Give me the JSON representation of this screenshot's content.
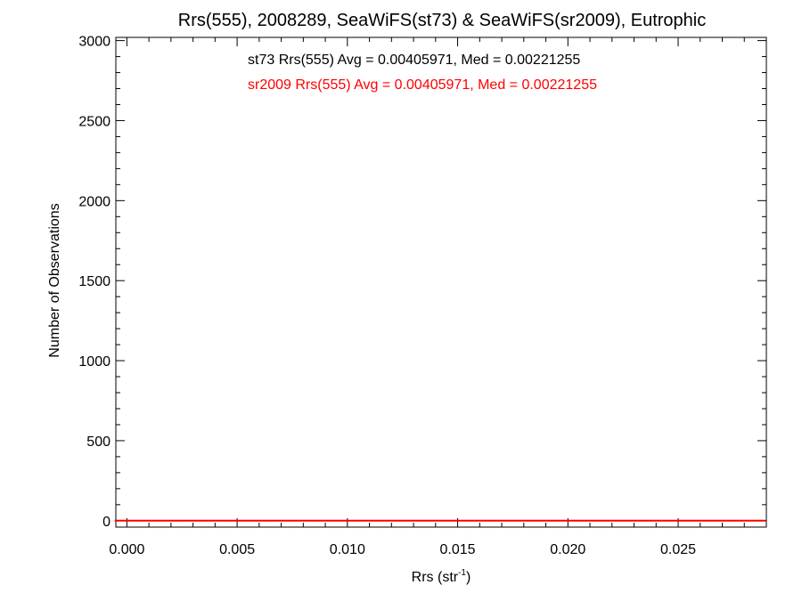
{
  "chart_data": {
    "type": "line",
    "title": "Rrs(555), 2008289, SeaWiFS(st73) & SeaWiFS(sr2009), Eutrophic",
    "xlabel": "Rrs (str",
    "xlabel_sup": "-1",
    "xlabel_close": ")",
    "ylabel": "Number of Observations",
    "xlim": [
      -0.0005,
      0.029
    ],
    "ylim": [
      -40,
      3020
    ],
    "xticks": [
      0.0,
      0.005,
      0.01,
      0.015,
      0.02,
      0.025
    ],
    "xtick_labels": [
      "0.000",
      "0.005",
      "0.010",
      "0.015",
      "0.020",
      "0.025"
    ],
    "yticks": [
      0,
      500,
      1000,
      1500,
      2000,
      2500,
      3000
    ],
    "ytick_labels": [
      "0",
      "500",
      "1000",
      "1500",
      "2000",
      "2500",
      "3000"
    ],
    "bin_width": 0.0001,
    "annotations": [
      {
        "text": "st73 Rrs(555) Avg = 0.00405971, Med = 0.00221255",
        "color": "#000000"
      },
      {
        "text": "sr2009 Rrs(555) Avg = 0.00405971, Med = 0.00221255",
        "color": "#ff0000"
      }
    ],
    "series": [
      {
        "color": "#ff0000",
        "x": [
          -0.0005,
          -0.0004,
          -0.0003,
          -0.0002,
          -0.0001,
          0.0,
          0.0001,
          0.0002,
          0.0003,
          0.0004,
          0.0005,
          0.0006,
          0.0007,
          0.0008,
          0.0009,
          0.001,
          0.0011,
          0.0012,
          0.0013,
          0.0014,
          0.0015,
          0.0016,
          0.0017,
          0.0018,
          0.0019,
          0.002,
          0.0021,
          0.0022,
          0.0023,
          0.0024,
          0.0025,
          0.0026,
          0.0027,
          0.0028,
          0.0029,
          0.003,
          0.0031,
          0.0032,
          0.0033,
          0.0034,
          0.0035,
          0.0036,
          0.0037,
          0.0038,
          0.0039,
          0.004,
          0.0041,
          0.0042,
          0.0043,
          0.0044,
          0.0045,
          0.0046,
          0.0047,
          0.0048,
          0.0049,
          0.005,
          0.0052,
          0.0054,
          0.0056,
          0.0058,
          0.006,
          0.0062,
          0.0064,
          0.0066,
          0.0068,
          0.007,
          0.0072,
          0.0074,
          0.0076,
          0.0078,
          0.008,
          0.0082,
          0.0084,
          0.0086,
          0.0088,
          0.009,
          0.0095,
          0.01,
          0.0105,
          0.011,
          0.0115,
          0.012,
          0.013,
          0.014,
          0.015,
          0.016,
          0.017,
          0.018,
          0.019,
          0.02,
          0.021,
          0.022,
          0.023,
          0.024,
          0.025,
          0.026,
          0.027,
          0.028,
          0.0289
        ],
        "y": [
          0,
          0,
          0,
          0,
          0,
          0,
          0,
          0,
          0,
          0,
          0,
          0,
          0,
          0,
          0,
          0,
          0,
          0,
          0,
          0,
          0,
          0,
          0,
          0,
          0,
          0,
          0,
          0,
          0,
          0,
          0,
          0,
          0,
          0,
          0,
          0,
          0,
          0,
          0,
          0,
          0,
          0,
          0,
          0,
          0,
          0,
          0,
          0,
          0,
          0,
          0,
          0,
          0,
          0,
          0,
          0,
          0,
          0,
          0,
          0,
          0,
          0,
          0,
          0,
          0,
          0,
          0,
          0,
          0,
          0,
          0,
          0,
          0,
          0,
          0,
          0,
          0,
          0,
          0,
          0,
          0,
          0,
          0,
          0,
          0,
          0,
          0,
          0,
          0,
          0,
          0,
          0,
          0,
          0,
          0,
          0,
          0,
          0,
          0
        ]
      }
    ]
  }
}
